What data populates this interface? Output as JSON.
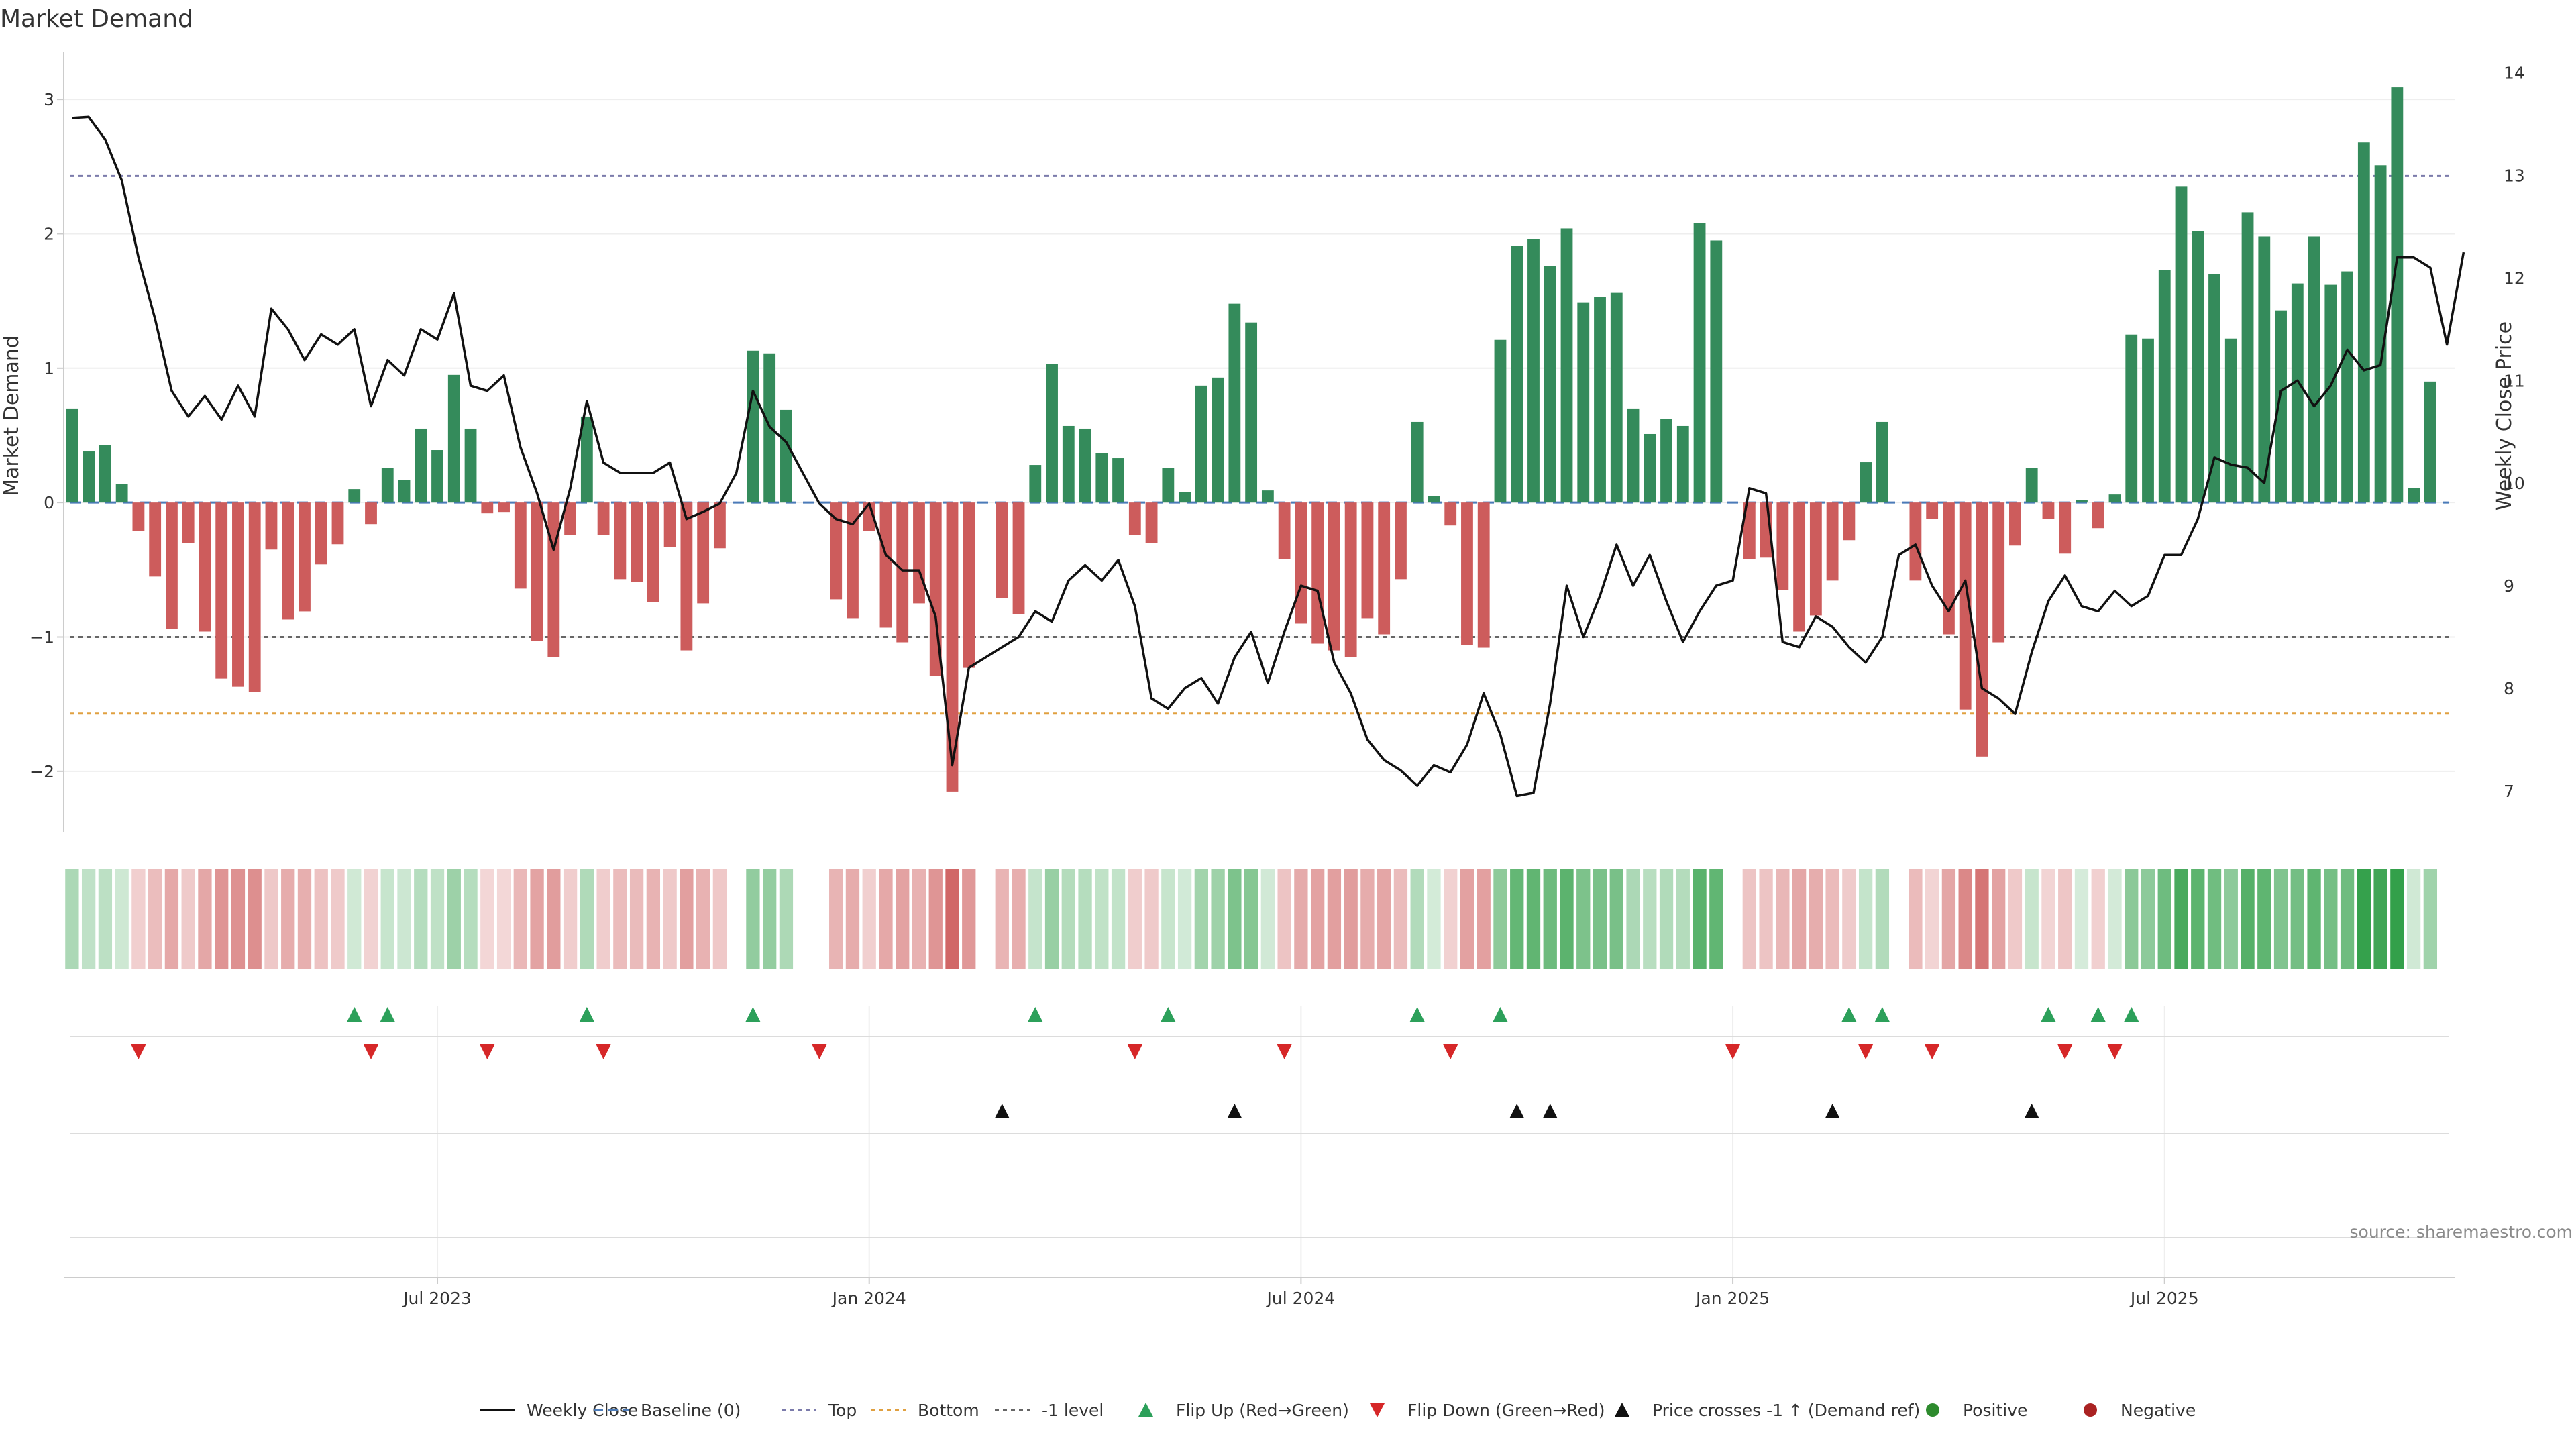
{
  "chart_data": {
    "type": "bar+line",
    "title": "Market Demand",
    "ylabel_left": "Market Demand",
    "ylabel_right": "Weekly Close Price",
    "source": "source: sharemaestro.com",
    "ylim_left": [
      -2.45,
      3.35
    ],
    "ylim_right": [
      6.6,
      14.2
    ],
    "yticks_left": [
      {
        "v": 3,
        "label": "3"
      },
      {
        "v": 2,
        "label": "2"
      },
      {
        "v": 1,
        "label": "1"
      },
      {
        "v": 0,
        "label": "0"
      },
      {
        "v": -1,
        "label": "−1"
      },
      {
        "v": -2,
        "label": "−2"
      }
    ],
    "yticks_right": [
      {
        "v": 14,
        "label": "14"
      },
      {
        "v": 13,
        "label": "13"
      },
      {
        "v": 12,
        "label": "12"
      },
      {
        "v": 11,
        "label": "11"
      },
      {
        "v": 10,
        "label": "10"
      },
      {
        "v": 9,
        "label": "9"
      },
      {
        "v": 8,
        "label": "8"
      },
      {
        "v": 7,
        "label": "7"
      }
    ],
    "x_weeks": 144,
    "xticks": [
      {
        "week": 22,
        "label": "Jul 2023"
      },
      {
        "week": 48,
        "label": "Jan 2024"
      },
      {
        "week": 74,
        "label": "Jul 2024"
      },
      {
        "week": 100,
        "label": "Jan 2025"
      },
      {
        "week": 126,
        "label": "Jul 2025"
      }
    ],
    "reference_lines": {
      "baseline": 0,
      "top": 2.43,
      "bottom": -1.57,
      "minus_one_level": -1
    },
    "series": [
      {
        "name": "Market Demand",
        "type": "bar",
        "axis": "left",
        "values": [
          0.7,
          0.38,
          0.43,
          0.14,
          -0.21,
          -0.55,
          -0.94,
          -0.3,
          -0.96,
          -1.31,
          -1.37,
          -1.41,
          -0.35,
          -0.87,
          -0.81,
          -0.46,
          -0.31,
          0.1,
          -0.16,
          0.26,
          0.17,
          0.55,
          0.39,
          0.95,
          0.55,
          -0.08,
          -0.07,
          -0.64,
          -1.03,
          -1.15,
          -0.24,
          0.64,
          -0.24,
          -0.57,
          -0.59,
          -0.74,
          -0.33,
          -1.1,
          -0.75,
          -0.34,
          0.0,
          1.13,
          1.11,
          0.69,
          0.0,
          0.0,
          -0.72,
          -0.86,
          -0.21,
          -0.93,
          -1.04,
          -0.75,
          -1.29,
          -2.15,
          -1.23,
          0.0,
          -0.71,
          -0.83,
          0.28,
          1.03,
          0.57,
          0.55,
          0.37,
          0.33,
          -0.24,
          -0.3,
          0.26,
          0.08,
          0.87,
          0.93,
          1.48,
          1.34,
          0.09,
          -0.42,
          -0.9,
          -1.05,
          -1.1,
          -1.15,
          -0.86,
          -0.98,
          -0.57,
          0.6,
          0.05,
          -0.17,
          -1.06,
          -1.08,
          1.21,
          1.91,
          1.96,
          1.76,
          2.04,
          1.49,
          1.53,
          1.56,
          0.7,
          0.51,
          0.62,
          0.57,
          2.08,
          1.95,
          0.0,
          -0.42,
          -0.41,
          -0.65,
          -0.96,
          -0.84,
          -0.58,
          -0.28,
          0.3,
          0.6,
          0.0,
          -0.58,
          -0.12,
          -0.98,
          -1.54,
          -1.89,
          -1.04,
          -0.32,
          0.26,
          -0.12,
          -0.38,
          0.02,
          -0.19,
          0.06,
          1.25,
          1.22,
          1.73,
          2.35,
          2.02,
          1.7,
          1.22,
          2.16,
          1.98,
          1.43,
          1.63,
          1.98,
          1.62,
          1.72,
          2.68,
          2.51,
          3.09,
          0.11,
          0.9
        ]
      },
      {
        "name": "Weekly Close",
        "type": "line",
        "axis": "right",
        "values": [
          13.56,
          13.57,
          13.35,
          12.95,
          12.2,
          11.6,
          10.9,
          10.65,
          10.85,
          10.62,
          10.95,
          10.65,
          11.7,
          11.5,
          11.2,
          11.45,
          11.35,
          11.5,
          10.75,
          11.2,
          11.05,
          11.5,
          11.4,
          11.85,
          10.95,
          10.9,
          11.05,
          10.35,
          9.9,
          9.35,
          9.95,
          10.8,
          10.2,
          10.1,
          10.1,
          10.1,
          10.2,
          9.65,
          9.72,
          9.8,
          10.1,
          10.9,
          10.55,
          10.4,
          10.1,
          9.8,
          9.65,
          9.6,
          9.8,
          9.3,
          9.15,
          9.15,
          8.7,
          7.25,
          8.2,
          8.3,
          8.4,
          8.5,
          8.75,
          8.65,
          9.05,
          9.2,
          9.05,
          9.25,
          8.8,
          7.9,
          7.8,
          8.0,
          8.1,
          7.85,
          8.3,
          8.55,
          8.05,
          8.55,
          9.0,
          8.95,
          8.25,
          7.95,
          7.5,
          7.3,
          7.2,
          7.05,
          7.25,
          7.18,
          7.45,
          7.95,
          7.55,
          6.95,
          6.98,
          7.85,
          9.0,
          8.5,
          8.9,
          9.4,
          9.0,
          9.3,
          8.85,
          8.45,
          8.75,
          9.0,
          9.05,
          9.95,
          9.9,
          8.45,
          8.4,
          8.7,
          8.6,
          8.4,
          8.25,
          8.5,
          9.3,
          9.4,
          9.0,
          8.75,
          9.05,
          8.0,
          7.9,
          7.75,
          8.35,
          8.85,
          9.1,
          8.8,
          8.75,
          8.95,
          8.8,
          8.9,
          9.3,
          9.3,
          9.65,
          10.25,
          10.18,
          10.15,
          10.0,
          10.9,
          11.0,
          10.75,
          10.95,
          11.3,
          11.1,
          11.15,
          12.2,
          12.2,
          12.1,
          11.35,
          12.25
        ]
      }
    ],
    "tile_strip": {
      "name": "Demand heat strip",
      "source_series": "Market Demand"
    },
    "events": {
      "flip_up_weeks": [
        17,
        19,
        31,
        41,
        58,
        66,
        81,
        86,
        107,
        109,
        119,
        122,
        124
      ],
      "flip_down_weeks": [
        4,
        18,
        25,
        32,
        45,
        64,
        73,
        83,
        100,
        108,
        112,
        120,
        123
      ],
      "price_cross_weeks": [
        56,
        70,
        87,
        89,
        106,
        118
      ]
    },
    "legend": [
      {
        "label": "Weekly Close",
        "kind": "line",
        "color": "#111111",
        "dash": "solid"
      },
      {
        "label": "Baseline (0)",
        "kind": "line",
        "color": "#4a7ab8",
        "dash": "dashed"
      },
      {
        "label": "Top",
        "kind": "line",
        "color": "#7b7bab",
        "dash": "dotted"
      },
      {
        "label": "Bottom",
        "kind": "line",
        "color": "#e0a040",
        "dash": "dotted"
      },
      {
        "label": "-1 level",
        "kind": "line",
        "color": "#666666",
        "dash": "dotted"
      },
      {
        "label": "Flip Up (Red→Green)",
        "kind": "triangle-up",
        "color": "#2ca05a"
      },
      {
        "label": "Flip Down (Green→Red)",
        "kind": "triangle-down",
        "color": "#d62728"
      },
      {
        "label": "Price crosses -1 ↑ (Demand ref)",
        "kind": "triangle-up",
        "color": "#111111"
      },
      {
        "label": "Positive",
        "kind": "circle",
        "color": "#2e8b2e"
      },
      {
        "label": "Negative",
        "kind": "circle",
        "color": "#aa2222"
      }
    ],
    "colors": {
      "positive_bar": "#348b5b",
      "negative_bar": "#cd5c5c",
      "price_line": "#111111",
      "grid": "#eeeeee",
      "top_line": "#7b7bab",
      "bottom_line": "#e0a040",
      "minus_one_line": "#666666",
      "baseline": "#4a7ab8",
      "flip_up": "#2ca05a",
      "flip_down": "#d62728",
      "price_cross": "#111111"
    }
  }
}
